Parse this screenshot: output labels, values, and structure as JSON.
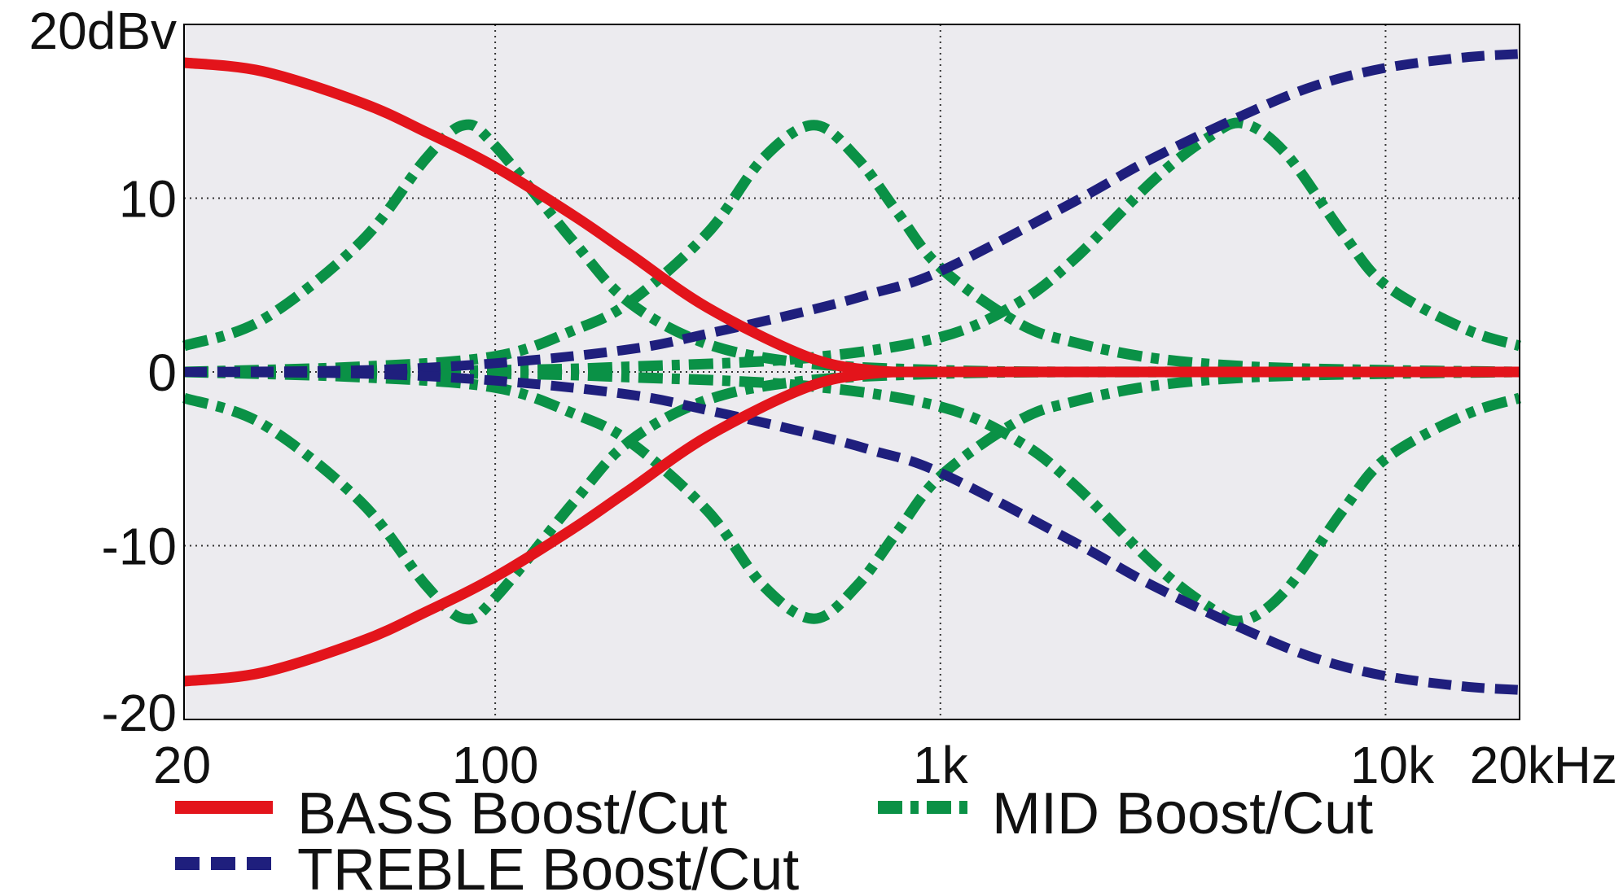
{
  "chart_data": {
    "type": "line",
    "x_scale": "log",
    "xlim": [
      20,
      20000
    ],
    "ylim": [
      -20,
      20
    ],
    "grid": true,
    "background": "#ecebef",
    "x_ticks": [
      {
        "value": 20,
        "label": "20"
      },
      {
        "value": 100,
        "label": "100"
      },
      {
        "value": 1000,
        "label": "1k"
      },
      {
        "value": 10000,
        "label": "10k"
      },
      {
        "value": 20000,
        "label": "20kHz"
      }
    ],
    "y_ticks": [
      {
        "value": 20,
        "label": "20dBv"
      },
      {
        "value": 10,
        "label": "10"
      },
      {
        "value": 0,
        "label": "0"
      },
      {
        "value": -10,
        "label": "-10"
      },
      {
        "value": -20,
        "label": "-20"
      }
    ],
    "legend": [
      {
        "label": "BASS Boost/Cut",
        "color": "#e3141b",
        "style": "solid"
      },
      {
        "label": "TREBLE Boost/Cut",
        "color": "#1f1f7d",
        "style": "dashed"
      },
      {
        "label": "MID Boost/Cut",
        "color": "#0a9146",
        "style": "dashdot"
      }
    ],
    "series": [
      {
        "group": "BASS Boost/Cut",
        "kind": "bass",
        "color": "#e3141b",
        "style": "solid",
        "x": [
          20,
          30,
          50,
          70,
          100,
          150,
          200,
          300,
          500,
          700,
          1000,
          2000,
          5000,
          20000
        ],
        "y": [
          17.8,
          17.3,
          15.5,
          13.8,
          11.8,
          9.0,
          6.8,
          3.7,
          0.9,
          0.1,
          0,
          0,
          0,
          0
        ]
      },
      {
        "group": "BASS Boost/Cut",
        "kind": "bass",
        "color": "#e3141b",
        "style": "solid",
        "x": [
          20,
          30,
          50,
          70,
          100,
          150,
          200,
          300,
          500,
          700,
          1000,
          2000,
          5000,
          20000
        ],
        "y": [
          -17.8,
          -17.3,
          -15.5,
          -13.8,
          -11.8,
          -9.0,
          -6.8,
          -3.7,
          -0.9,
          -0.1,
          0,
          0,
          0,
          0
        ]
      },
      {
        "group": "TREBLE Boost/Cut",
        "kind": "treble",
        "color": "#1f1f7d",
        "style": "dashed",
        "x": [
          20,
          50,
          100,
          200,
          300,
          500,
          700,
          1000,
          2000,
          3000,
          5000,
          7000,
          10000,
          15000,
          20000
        ],
        "y": [
          0,
          0.1,
          0.5,
          1.3,
          2.2,
          3.5,
          4.5,
          5.8,
          9.8,
          12.3,
          15.0,
          16.5,
          17.5,
          18.1,
          18.3
        ]
      },
      {
        "group": "TREBLE Boost/Cut",
        "kind": "treble",
        "color": "#1f1f7d",
        "style": "dashed",
        "x": [
          20,
          50,
          100,
          200,
          300,
          500,
          700,
          1000,
          2000,
          3000,
          5000,
          7000,
          10000,
          15000,
          20000
        ],
        "y": [
          0,
          -0.1,
          -0.5,
          -1.3,
          -2.2,
          -3.5,
          -4.5,
          -5.8,
          -9.8,
          -12.3,
          -15.0,
          -16.5,
          -17.5,
          -18.1,
          -18.3
        ]
      },
      {
        "group": "MID Boost/Cut",
        "kind": "mid",
        "color": "#0a9146",
        "style": "dashdot",
        "x": [
          20,
          30,
          50,
          70,
          85,
          100,
          150,
          200,
          300,
          500,
          1000,
          2000,
          5000,
          20000
        ],
        "y": [
          1.5,
          3.0,
          7.5,
          12.3,
          14.2,
          13.0,
          7.5,
          4.0,
          1.6,
          0.5,
          0.1,
          0,
          0,
          0
        ]
      },
      {
        "group": "MID Boost/Cut",
        "kind": "mid",
        "color": "#0a9146",
        "style": "dashdot",
        "x": [
          20,
          30,
          50,
          70,
          85,
          100,
          150,
          200,
          300,
          500,
          1000,
          2000,
          5000,
          20000
        ],
        "y": [
          -1.5,
          -3.0,
          -7.5,
          -12.3,
          -14.2,
          -13.0,
          -7.5,
          -4.0,
          -1.6,
          -0.5,
          -0.1,
          0,
          0,
          0
        ]
      },
      {
        "group": "MID Boost/Cut",
        "kind": "mid",
        "color": "#0a9146",
        "style": "dashdot",
        "x": [
          20,
          50,
          100,
          150,
          200,
          300,
          400,
          520,
          650,
          800,
          1000,
          1500,
          2000,
          3000,
          5000,
          10000,
          20000
        ],
        "y": [
          0,
          0.3,
          0.9,
          2.4,
          4.0,
          8.0,
          12.3,
          14.2,
          12.3,
          9.2,
          6.0,
          2.8,
          1.7,
          0.8,
          0.3,
          0.1,
          0
        ]
      },
      {
        "group": "MID Boost/Cut",
        "kind": "mid",
        "color": "#0a9146",
        "style": "dashdot",
        "x": [
          20,
          50,
          100,
          150,
          200,
          300,
          400,
          520,
          650,
          800,
          1000,
          1500,
          2000,
          3000,
          5000,
          10000,
          20000
        ],
        "y": [
          0,
          -0.3,
          -0.9,
          -2.4,
          -4.0,
          -8.0,
          -12.3,
          -14.2,
          -12.3,
          -9.2,
          -6.0,
          -2.8,
          -1.7,
          -0.8,
          -0.3,
          -0.1,
          0
        ]
      },
      {
        "group": "MID Boost/Cut",
        "kind": "mid",
        "color": "#0a9146",
        "style": "dashdot",
        "x": [
          20,
          100,
          200,
          500,
          1000,
          1500,
          2000,
          3000,
          4000,
          4800,
          6000,
          8000,
          10000,
          15000,
          20000
        ],
        "y": [
          0,
          0.1,
          0.3,
          0.8,
          2.0,
          4.0,
          6.5,
          11.0,
          13.5,
          14.3,
          12.5,
          8.0,
          5.0,
          2.5,
          1.5
        ]
      },
      {
        "group": "MID Boost/Cut",
        "kind": "mid",
        "color": "#0a9146",
        "style": "dashdot",
        "x": [
          20,
          100,
          200,
          500,
          1000,
          1500,
          2000,
          3000,
          4000,
          4800,
          6000,
          8000,
          10000,
          15000,
          20000
        ],
        "y": [
          0,
          -0.1,
          -0.3,
          -0.8,
          -2.0,
          -4.0,
          -6.5,
          -11.0,
          -13.5,
          -14.3,
          -12.5,
          -8.0,
          -5.0,
          -2.5,
          -1.5
        ]
      }
    ]
  }
}
